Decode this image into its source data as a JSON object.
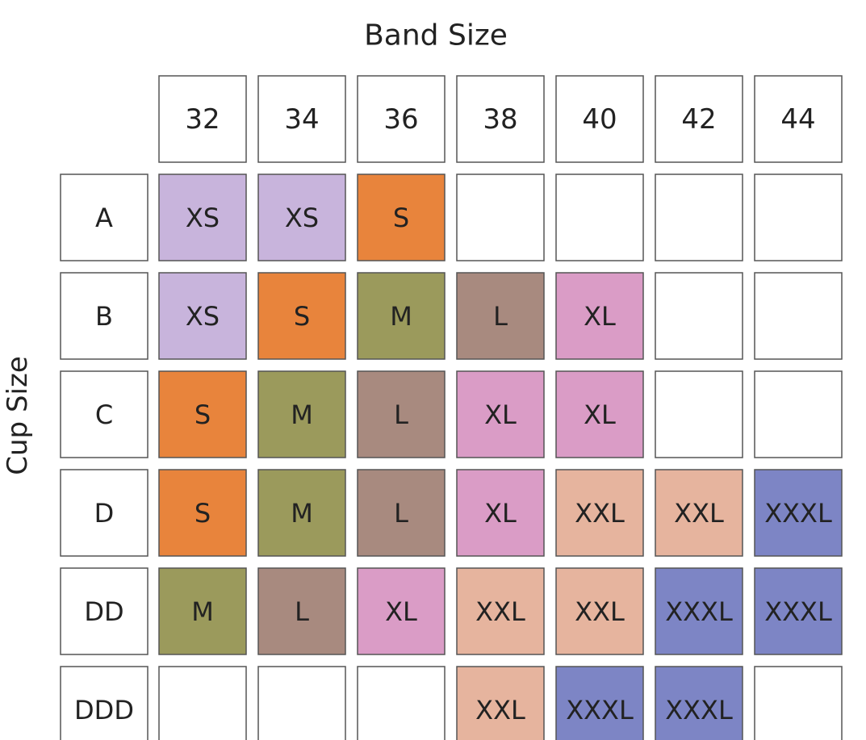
{
  "title": "Band Size",
  "row_axis_label": "Cup Size",
  "columns": [
    32,
    34,
    36,
    38,
    40,
    42,
    44
  ],
  "rows": [
    {
      "label": "A",
      "cells": [
        "XS",
        "XS",
        "S",
        null,
        null,
        null,
        null
      ]
    },
    {
      "label": "B",
      "cells": [
        "XS",
        "S",
        "M",
        "L",
        "XL",
        null,
        null
      ]
    },
    {
      "label": "C",
      "cells": [
        "S",
        "M",
        "L",
        "XL",
        "XL",
        null,
        null
      ]
    },
    {
      "label": "D",
      "cells": [
        "S",
        "M",
        "L",
        "XL",
        "XXL",
        "XXL",
        "XXXL"
      ]
    },
    {
      "label": "DD",
      "cells": [
        "M",
        "L",
        "XL",
        "XXL",
        "XXL",
        "XXXL",
        "XXXL"
      ]
    },
    {
      "label": "DDD",
      "cells": [
        null,
        null,
        null,
        "XXL",
        "XXXL",
        "XXXL",
        null
      ]
    }
  ],
  "colors": {
    "XS": "#c8b4dc",
    "S": "#e8843c",
    "M": "#9b9a5c",
    "L": "#a88a7f",
    "XL": "#da9cc6",
    "XXL": "#e6b49e",
    "XXXL": "#7d85c5"
  }
}
